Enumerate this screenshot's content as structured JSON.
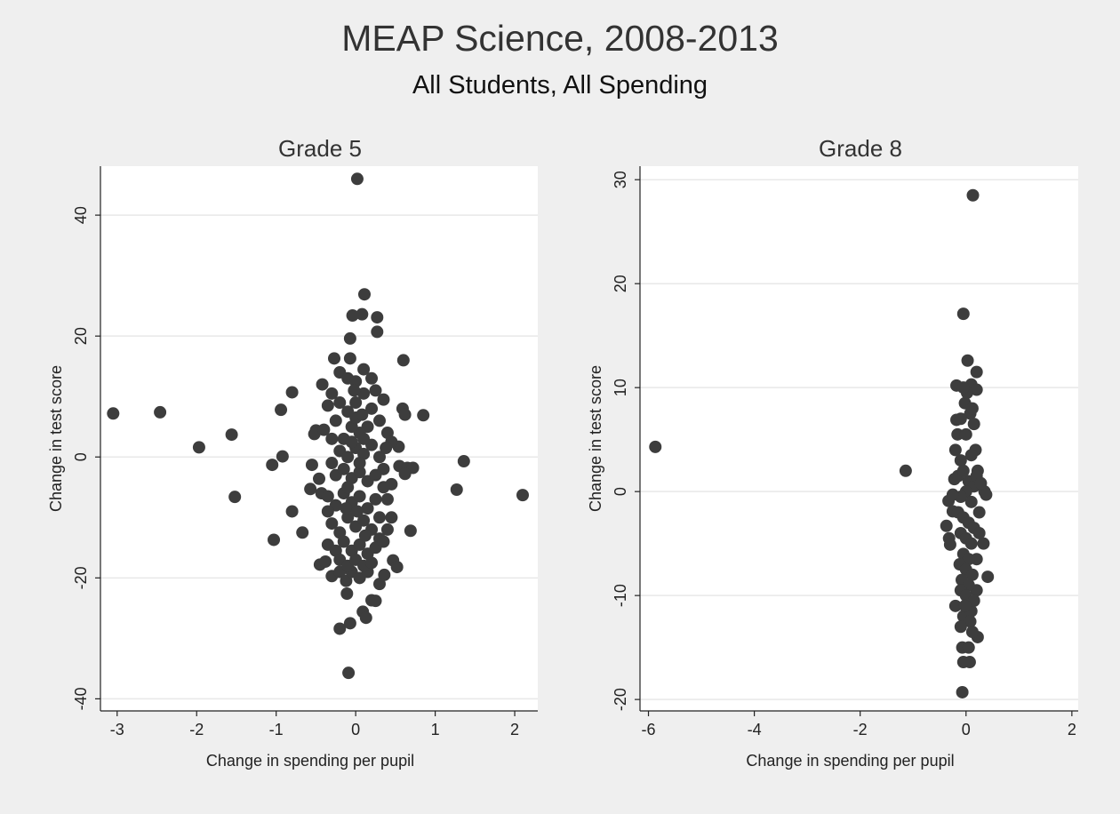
{
  "title": "MEAP Science, 2008-2013",
  "subtitle": "All Students, All Spending",
  "colors": {
    "marker": "#3d3d3d",
    "grid": "#e8e8e8",
    "axis": "#222222",
    "plot_bg": "#ffffff"
  },
  "chart_data": [
    {
      "type": "scatter",
      "title": "Grade 5",
      "xlabel": "Change in spending per pupil",
      "ylabel": "Change in test score",
      "xlim": [
        -3.21,
        2.29
      ],
      "ylim": [
        -42,
        48.1
      ],
      "xticks": [
        -3,
        -2,
        -1,
        0,
        1,
        2
      ],
      "yticks": [
        -40,
        -20,
        0,
        20,
        40
      ],
      "grid": true,
      "points": [
        [
          -3.05,
          7.2
        ],
        [
          -2.46,
          7.4
        ],
        [
          -1.97,
          1.6
        ],
        [
          -1.56,
          3.7
        ],
        [
          -1.52,
          -6.6
        ],
        [
          -1.05,
          -1.3
        ],
        [
          -1.03,
          -13.7
        ],
        [
          -0.92,
          0.1
        ],
        [
          -0.94,
          7.8
        ],
        [
          -0.8,
          10.7
        ],
        [
          -0.8,
          -9.0
        ],
        [
          -0.67,
          -12.5
        ],
        [
          0.02,
          46
        ],
        [
          -0.09,
          -35.7
        ],
        [
          -0.2,
          -28.4
        ],
        [
          -0.07,
          -27.5
        ],
        [
          0.11,
          26.9
        ],
        [
          -0.04,
          23.4
        ],
        [
          0.08,
          23.6
        ],
        [
          0.27,
          23.1
        ],
        [
          0.27,
          20.7
        ],
        [
          -0.07,
          19.6
        ],
        [
          0.6,
          16
        ],
        [
          0.85,
          6.9
        ],
        [
          1.36,
          -0.7
        ],
        [
          1.27,
          -5.4
        ],
        [
          2.1,
          -6.3
        ],
        [
          0.69,
          -12.2
        ],
        [
          0.47,
          -17.1
        ],
        [
          0.52,
          -18.2
        ],
        [
          0.2,
          -23.7
        ],
        [
          0.09,
          -25.6
        ],
        [
          0.13,
          -26.6
        ],
        [
          -0.11,
          -22.6
        ],
        [
          -0.42,
          12
        ],
        [
          -0.27,
          16.3
        ],
        [
          -0.07,
          16.3
        ],
        [
          0.59,
          8.0
        ],
        [
          0.62,
          7.0
        ],
        [
          0.54,
          1.7
        ],
        [
          0.55,
          -1.5
        ],
        [
          0.65,
          -1.8
        ],
        [
          0.72,
          -1.8
        ],
        [
          0.62,
          -2.8
        ],
        [
          0.45,
          -10.0
        ],
        [
          0.36,
          -19.5
        ],
        [
          -0.5,
          4.4
        ],
        [
          -0.52,
          3.8
        ],
        [
          -0.55,
          -1.3
        ],
        [
          -0.57,
          -5.3
        ],
        [
          -0.46,
          -3.6
        ],
        [
          -0.43,
          -6.0
        ],
        [
          -0.45,
          -17.8
        ],
        [
          -0.38,
          -17.3
        ],
        [
          -0.3,
          -19.7
        ],
        [
          -0.2,
          -19.0
        ],
        [
          -0.12,
          -20.5
        ],
        [
          -0.05,
          -19.0
        ],
        [
          0.05,
          -20.0
        ],
        [
          0.15,
          -19.0
        ],
        [
          0.3,
          -21.0
        ],
        [
          0.25,
          -23.8
        ],
        [
          -0.3,
          10.5
        ],
        [
          -0.2,
          14.0
        ],
        [
          -0.1,
          13.0
        ],
        [
          0.0,
          12.5
        ],
        [
          0.1,
          14.5
        ],
        [
          0.2,
          13.0
        ],
        [
          0.25,
          11.0
        ],
        [
          0.35,
          9.5
        ],
        [
          -0.35,
          8.5
        ],
        [
          -0.25,
          6.0
        ],
        [
          0.3,
          6.0
        ],
        [
          0.4,
          4.0
        ],
        [
          0.45,
          2.5
        ],
        [
          -0.3,
          3.0
        ],
        [
          -0.2,
          9.0
        ],
        [
          -0.1,
          7.5
        ],
        [
          0.0,
          9.0
        ],
        [
          0.1,
          10.5
        ],
        [
          0.2,
          8.0
        ],
        [
          0.15,
          5.0
        ],
        [
          0.05,
          4.0
        ],
        [
          -0.05,
          5.0
        ],
        [
          -0.15,
          3.0
        ],
        [
          -0.2,
          1.0
        ],
        [
          -0.1,
          0.0
        ],
        [
          0.0,
          1.5
        ],
        [
          0.1,
          0.5
        ],
        [
          0.2,
          2.0
        ],
        [
          0.3,
          0.0
        ],
        [
          0.35,
          -2.0
        ],
        [
          -0.3,
          -1.0
        ],
        [
          -0.25,
          -3.0
        ],
        [
          -0.15,
          -2.0
        ],
        [
          -0.05,
          -3.5
        ],
        [
          0.05,
          -2.5
        ],
        [
          0.15,
          -4.0
        ],
        [
          0.25,
          -3.0
        ],
        [
          0.35,
          -5.0
        ],
        [
          0.4,
          -7.0
        ],
        [
          -0.35,
          -6.5
        ],
        [
          -0.25,
          -8.0
        ],
        [
          -0.15,
          -6.0
        ],
        [
          -0.05,
          -7.5
        ],
        [
          0.05,
          -6.5
        ],
        [
          0.15,
          -8.5
        ],
        [
          0.25,
          -7.0
        ],
        [
          0.3,
          -10.0
        ],
        [
          -0.3,
          -11.0
        ],
        [
          -0.2,
          -12.5
        ],
        [
          -0.1,
          -10.0
        ],
        [
          0.0,
          -11.5
        ],
        [
          0.1,
          -10.5
        ],
        [
          0.2,
          -12.0
        ],
        [
          0.3,
          -13.5
        ],
        [
          0.4,
          -12.0
        ],
        [
          -0.35,
          -14.5
        ],
        [
          -0.25,
          -15.5
        ],
        [
          -0.15,
          -14.0
        ],
        [
          -0.05,
          -15.5
        ],
        [
          0.05,
          -14.5
        ],
        [
          0.15,
          -16.0
        ],
        [
          0.25,
          -15.0
        ],
        [
          0.35,
          -14.0
        ],
        [
          -0.2,
          -17.0
        ],
        [
          -0.1,
          -18.0
        ],
        [
          0.0,
          -17.0
        ],
        [
          0.1,
          -18.0
        ],
        [
          0.2,
          -17.5
        ],
        [
          -0.4,
          4.5
        ],
        [
          0.45,
          -4.5
        ],
        [
          -0.35,
          -9.0
        ],
        [
          0.38,
          1.5
        ],
        [
          0.0,
          6.5
        ],
        [
          0.05,
          -1.0
        ],
        [
          -0.05,
          2.5
        ],
        [
          0.1,
          3.0
        ],
        [
          -0.1,
          -5.0
        ],
        [
          0.12,
          -13.0
        ],
        [
          -0.12,
          -8.5
        ],
        [
          0.02,
          -9.0
        ],
        [
          0.08,
          7.0
        ],
        [
          -0.02,
          11.0
        ]
      ]
    },
    {
      "type": "scatter",
      "title": "Grade 8",
      "xlabel": "Change in spending per pupil",
      "ylabel": "Change in test score",
      "xlim": [
        -6.16,
        2.12
      ],
      "ylim": [
        -21.1,
        31.3
      ],
      "xticks": [
        -6,
        -4,
        -2,
        0,
        2
      ],
      "yticks": [
        -20,
        -10,
        0,
        10,
        20,
        30
      ],
      "grid": true,
      "points": [
        [
          -5.87,
          4.3
        ],
        [
          -1.14,
          2.0
        ],
        [
          0.13,
          28.5
        ],
        [
          -0.05,
          17.1
        ],
        [
          0.03,
          12.6
        ],
        [
          0.2,
          11.5
        ],
        [
          -0.18,
          10.2
        ],
        [
          0.1,
          10.3
        ],
        [
          0.2,
          9.8
        ],
        [
          -0.07,
          -19.3
        ],
        [
          -0.05,
          -16.4
        ],
        [
          0.07,
          -16.4
        ],
        [
          -0.07,
          -15.0
        ],
        [
          0.05,
          -15.0
        ],
        [
          0.22,
          -14.0
        ],
        [
          0.41,
          -8.2
        ],
        [
          0.33,
          -5.0
        ],
        [
          0.35,
          0.0
        ],
        [
          0.38,
          -0.3
        ],
        [
          -0.37,
          -3.3
        ],
        [
          -0.32,
          -4.5
        ],
        [
          -0.3,
          -5.1
        ],
        [
          -0.33,
          -0.9
        ],
        [
          -0.25,
          -1.9
        ],
        [
          -0.22,
          1.2
        ],
        [
          -0.18,
          6.9
        ],
        [
          -0.16,
          5.5
        ],
        [
          -0.2,
          -11.0
        ],
        [
          -0.05,
          -12.0
        ],
        [
          0.1,
          -11.5
        ],
        [
          0.2,
          -9.5
        ],
        [
          0.2,
          -6.5
        ],
        [
          0.25,
          -2.0
        ],
        [
          0.22,
          2.0
        ],
        [
          0.18,
          4.0
        ],
        [
          0.15,
          6.5
        ],
        [
          0.08,
          7.5
        ],
        [
          -0.02,
          8.5
        ],
        [
          -0.1,
          7.0
        ],
        [
          0.0,
          5.5
        ],
        [
          0.1,
          3.5
        ],
        [
          -0.1,
          3.0
        ],
        [
          -0.15,
          1.5
        ],
        [
          -0.05,
          2.0
        ],
        [
          0.05,
          1.0
        ],
        [
          0.15,
          0.5
        ],
        [
          0.0,
          0.0
        ],
        [
          -0.1,
          -0.5
        ],
        [
          0.1,
          -1.0
        ],
        [
          -0.15,
          -2.0
        ],
        [
          -0.05,
          -2.5
        ],
        [
          0.05,
          -3.0
        ],
        [
          0.15,
          -3.5
        ],
        [
          -0.1,
          -4.0
        ],
        [
          0.0,
          -4.5
        ],
        [
          0.1,
          -5.0
        ],
        [
          -0.05,
          -6.0
        ],
        [
          0.05,
          -6.5
        ],
        [
          -0.12,
          -7.0
        ],
        [
          0.0,
          -7.5
        ],
        [
          0.12,
          -8.0
        ],
        [
          -0.08,
          -8.5
        ],
        [
          0.05,
          -9.0
        ],
        [
          -0.1,
          -9.5
        ],
        [
          0.0,
          -10.0
        ],
        [
          0.15,
          -10.5
        ],
        [
          -0.02,
          -11.0
        ],
        [
          0.08,
          -12.5
        ],
        [
          -0.1,
          -13.0
        ],
        [
          0.12,
          -13.5
        ],
        [
          0.2,
          1.5
        ],
        [
          -0.2,
          4.0
        ],
        [
          0.25,
          -4.0
        ],
        [
          0.02,
          9.5
        ],
        [
          -0.05,
          10.0
        ],
        [
          0.12,
          8.0
        ],
        [
          0.28,
          0.8
        ],
        [
          -0.25,
          -0.3
        ]
      ]
    }
  ]
}
